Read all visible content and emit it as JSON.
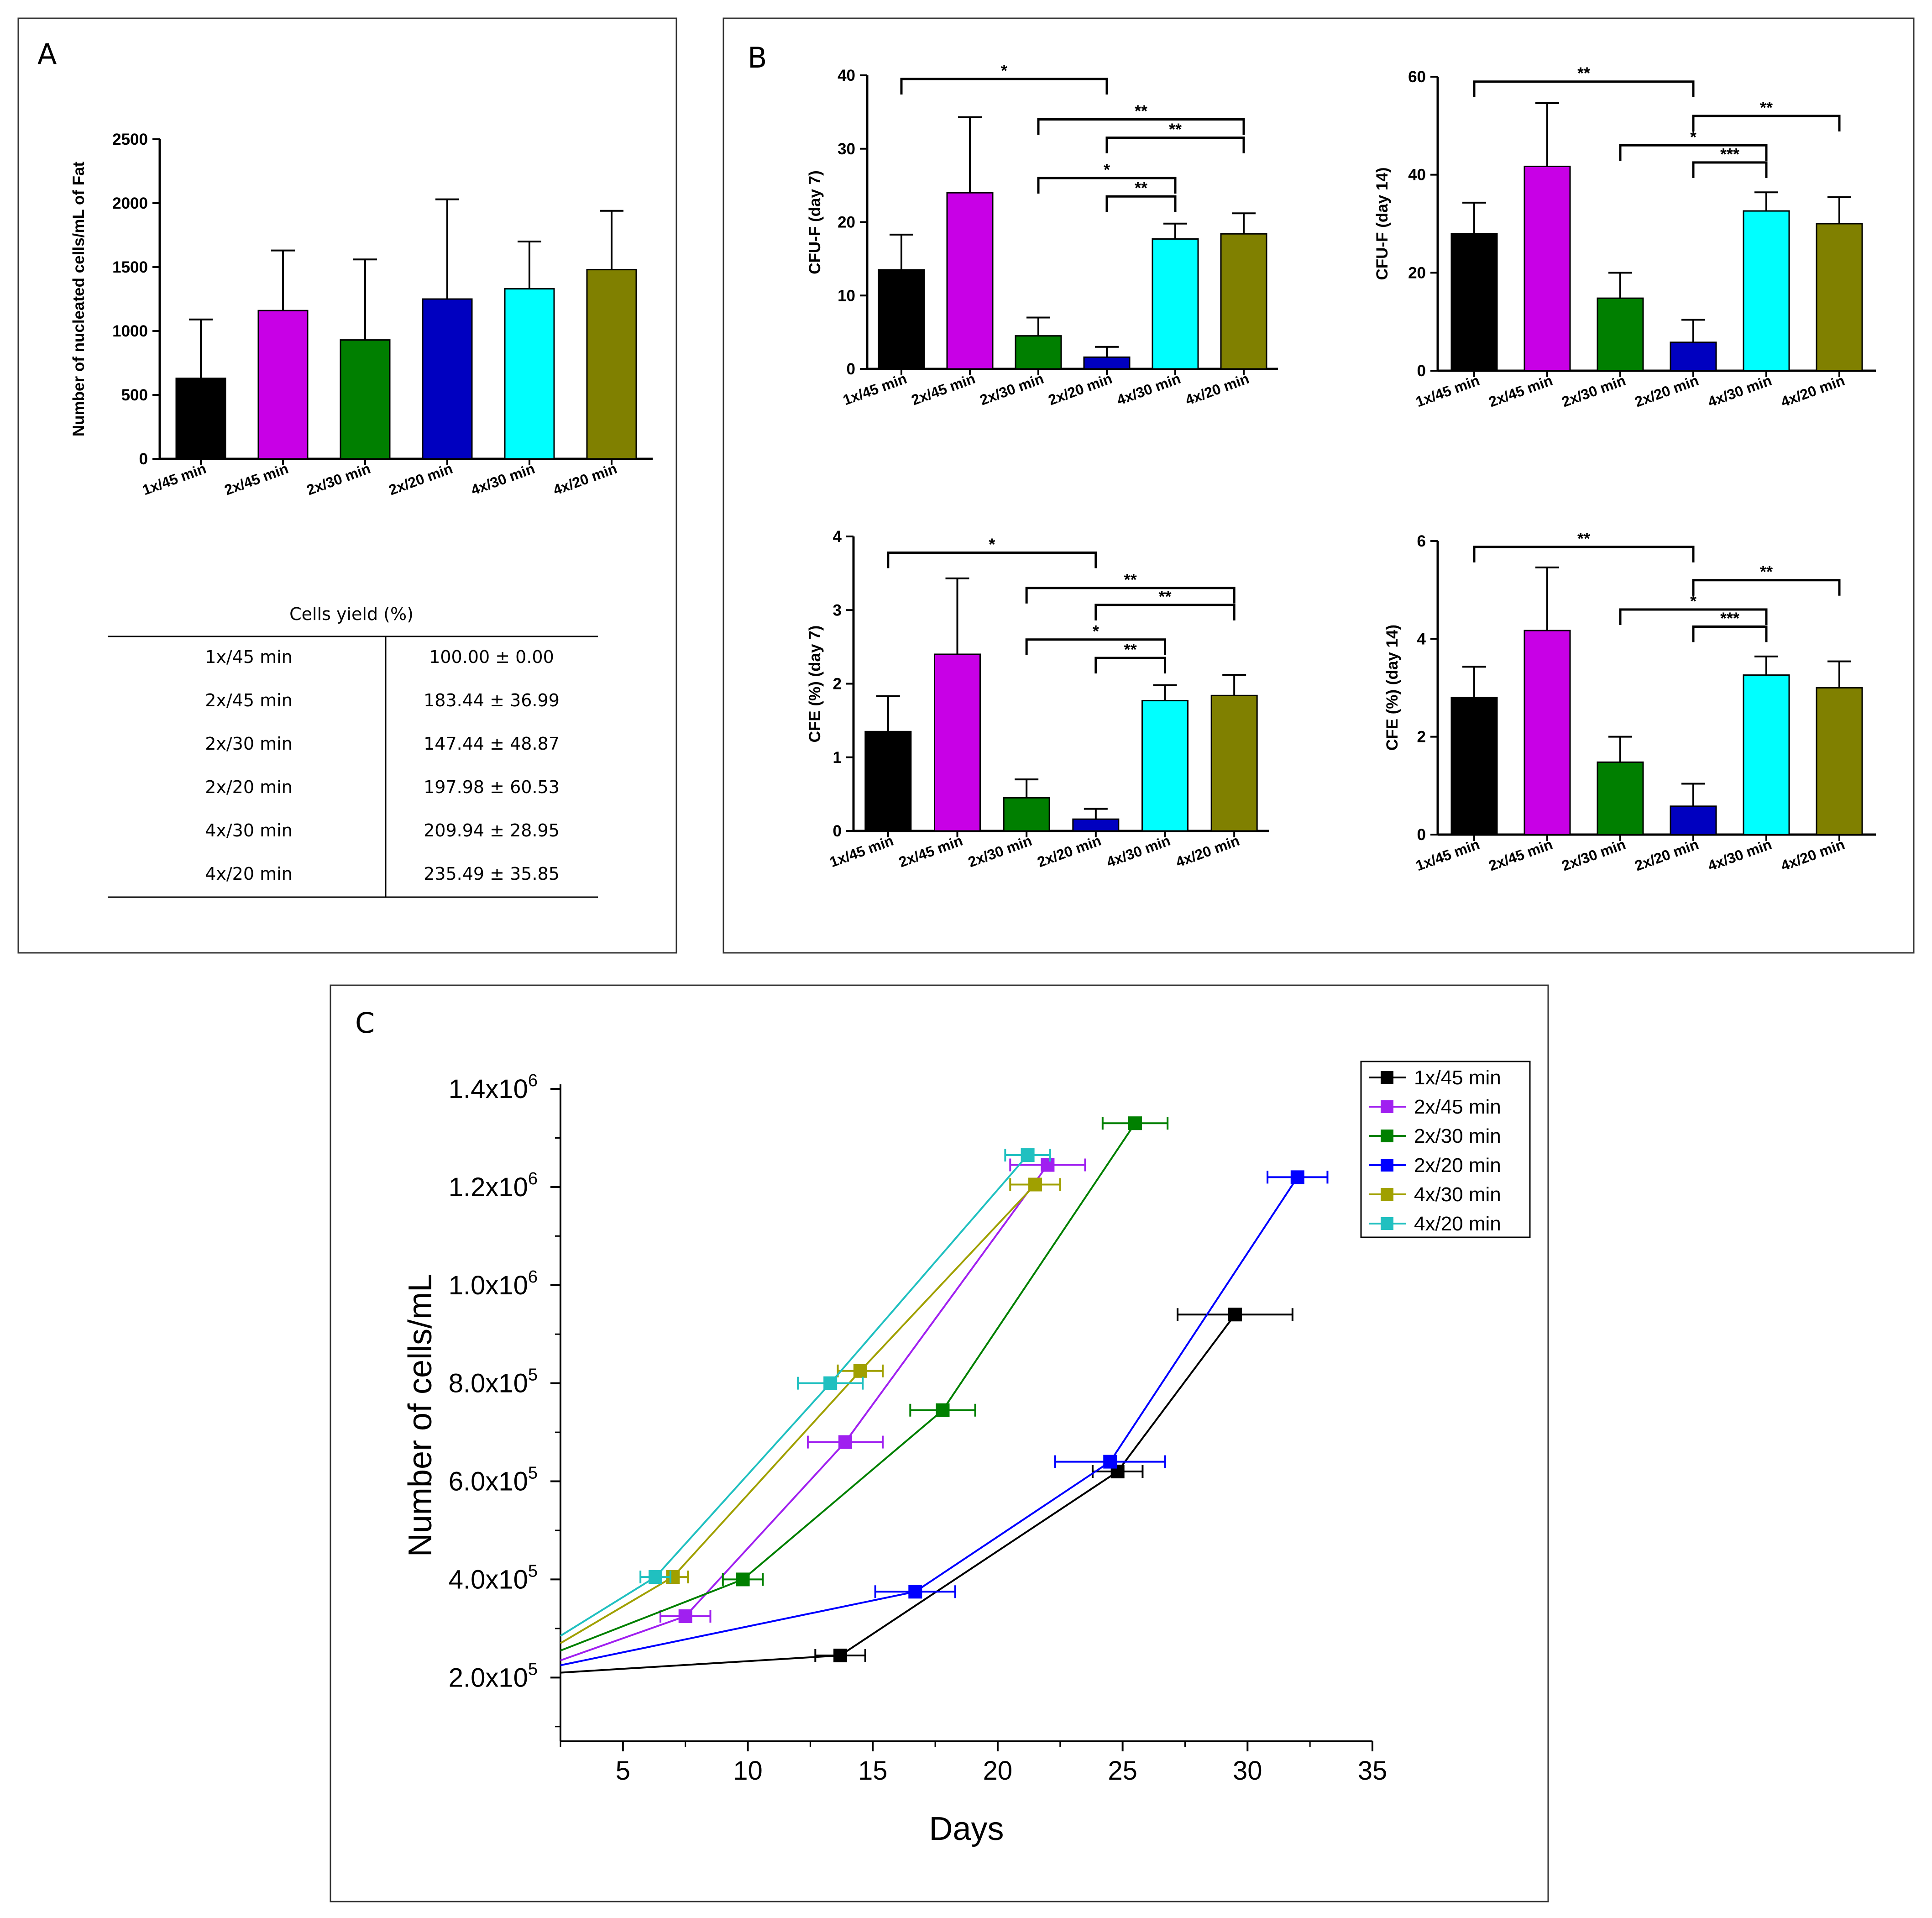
{
  "figure": {
    "panel_a": {
      "letter": "A"
    },
    "panel_b": {
      "letter": "B"
    },
    "panel_c": {
      "letter": "C"
    }
  },
  "colors": {
    "1x/45 min": "#000000",
    "2x/45 min": "#c800e6",
    "2x/30 min": "#007f00",
    "2x/20 min": "#0000c0",
    "4x/30 min": "#00ffff",
    "4x/20 min": "#808000"
  },
  "line_colors": {
    "1x/45 min": "#000000",
    "2x/45 min": "#a020f0",
    "2x/30 min": "#008000",
    "2x/20 min": "#0000ff",
    "4x/30 min": "#a0a000",
    "4x/20 min": "#20c0c0"
  },
  "cells_yield": {
    "title": "Cells yield (%)",
    "rows": [
      {
        "group": "1x/45 min",
        "value": "100.00 ± 0.00"
      },
      {
        "group": "2x/45 min",
        "value": "183.44 ± 36.99"
      },
      {
        "group": "2x/30 min",
        "value": "147.44 ± 48.87"
      },
      {
        "group": "2x/20 min",
        "value": "197.98 ± 60.53"
      },
      {
        "group": "4x/30 min",
        "value": "209.94 ± 28.95"
      },
      {
        "group": "4x/20 min",
        "value": "235.49 ± 35.85"
      }
    ]
  },
  "chart_data": [
    {
      "id": "A",
      "type": "bar",
      "ylabel": "Number of nucleated cells/mL of Fat",
      "categories": [
        "1x/45 min",
        "2x/45 min",
        "2x/30 min",
        "2x/20 min",
        "4x/30 min",
        "4x/20 min"
      ],
      "values": [
        630,
        1160,
        930,
        1250,
        1330,
        1480
      ],
      "errors": [
        460,
        470,
        630,
        780,
        370,
        460
      ],
      "ylim": [
        0,
        2500
      ],
      "yticks": [
        0,
        500,
        1000,
        1500,
        2000,
        2500
      ],
      "ytick_labels": [
        "0",
        "500",
        "1000",
        "1500",
        "2000",
        "2500"
      ],
      "significance": []
    },
    {
      "id": "B1",
      "type": "bar",
      "ylabel": "CFU-F (day 7)",
      "categories": [
        "1x/45 min",
        "2x/45 min",
        "2x/30 min",
        "2x/20 min",
        "4x/30 min",
        "4x/20 min"
      ],
      "values": [
        13.5,
        24.0,
        4.5,
        1.6,
        17.7,
        18.4
      ],
      "errors": [
        4.8,
        10.3,
        2.5,
        1.4,
        2.1,
        2.8
      ],
      "ylim": [
        0,
        40
      ],
      "yticks": [
        0,
        10,
        20,
        30,
        40
      ],
      "ytick_labels": [
        "0",
        "10",
        "20",
        "30",
        "40"
      ],
      "significance": [
        {
          "from": 0,
          "to": 3,
          "y": 39.5,
          "label": "*"
        },
        {
          "from": 2,
          "to": 5,
          "y": 34.0,
          "label": "**"
        },
        {
          "from": 3,
          "to": 5,
          "y": 31.5,
          "label": "**"
        },
        {
          "from": 2,
          "to": 4,
          "y": 26.0,
          "label": "*"
        },
        {
          "from": 3,
          "to": 4,
          "y": 23.5,
          "label": "**"
        }
      ]
    },
    {
      "id": "B2",
      "type": "bar",
      "ylabel": "CFU-F (day 14)",
      "categories": [
        "1x/45 min",
        "2x/45 min",
        "2x/30 min",
        "2x/20 min",
        "4x/30 min",
        "4x/20 min"
      ],
      "values": [
        28.0,
        41.7,
        14.8,
        5.8,
        32.6,
        30.0
      ],
      "errors": [
        6.3,
        12.9,
        5.2,
        4.6,
        3.8,
        5.4
      ],
      "ylim": [
        0,
        60
      ],
      "yticks": [
        0,
        20,
        40,
        60
      ],
      "ytick_labels": [
        "0",
        "20",
        "40",
        "60"
      ],
      "significance": [
        {
          "from": 0,
          "to": 3,
          "y": 59.0,
          "label": "**"
        },
        {
          "from": 3,
          "to": 5,
          "y": 52.0,
          "label": "**"
        },
        {
          "from": 2,
          "to": 4,
          "y": 46.0,
          "label": "*"
        },
        {
          "from": 3,
          "to": 4,
          "y": 42.5,
          "label": "***"
        }
      ]
    },
    {
      "id": "B3",
      "type": "bar",
      "ylabel": "CFE (%) (day 7)",
      "categories": [
        "1x/45 min",
        "2x/45 min",
        "2x/30 min",
        "2x/20 min",
        "4x/30 min",
        "4x/20 min"
      ],
      "values": [
        1.35,
        2.4,
        0.45,
        0.16,
        1.77,
        1.84
      ],
      "errors": [
        0.48,
        1.03,
        0.25,
        0.14,
        0.21,
        0.28
      ],
      "ylim": [
        0,
        4
      ],
      "yticks": [
        0,
        1,
        2,
        3,
        4
      ],
      "ytick_labels": [
        "0",
        "1",
        "2",
        "3",
        "4"
      ],
      "significance": [
        {
          "from": 0,
          "to": 3,
          "y": 3.78,
          "label": "*"
        },
        {
          "from": 2,
          "to": 5,
          "y": 3.3,
          "label": "**"
        },
        {
          "from": 3,
          "to": 5,
          "y": 3.07,
          "label": "**"
        },
        {
          "from": 2,
          "to": 4,
          "y": 2.6,
          "label": "*"
        },
        {
          "from": 3,
          "to": 4,
          "y": 2.35,
          "label": "**"
        }
      ]
    },
    {
      "id": "B4",
      "type": "bar",
      "ylabel": "CFE (%) (day 14)",
      "categories": [
        "1x/45 min",
        "2x/45 min",
        "2x/30 min",
        "2x/20 min",
        "4x/30 min",
        "4x/20 min"
      ],
      "values": [
        2.8,
        4.17,
        1.48,
        0.58,
        3.26,
        3.0
      ],
      "errors": [
        0.63,
        1.29,
        0.52,
        0.46,
        0.38,
        0.54
      ],
      "ylim": [
        0,
        6
      ],
      "yticks": [
        0,
        2,
        4,
        6
      ],
      "ytick_labels": [
        "0",
        "2",
        "4",
        "6"
      ],
      "significance": [
        {
          "from": 0,
          "to": 3,
          "y": 5.88,
          "label": "**"
        },
        {
          "from": 3,
          "to": 5,
          "y": 5.2,
          "label": "**"
        },
        {
          "from": 2,
          "to": 4,
          "y": 4.6,
          "label": "*"
        },
        {
          "from": 3,
          "to": 4,
          "y": 4.25,
          "label": "***"
        }
      ]
    },
    {
      "id": "C",
      "type": "line",
      "xlabel": "Days",
      "ylabel": "Number of cells/mL",
      "xlim": [
        2.5,
        35
      ],
      "ylim": [
        70000,
        1400000
      ],
      "xticks": [
        5,
        10,
        15,
        20,
        25,
        30,
        35
      ],
      "xtick_labels": [
        "5",
        "10",
        "15",
        "20",
        "25",
        "30",
        "35"
      ],
      "yticks": [
        200000,
        400000,
        600000,
        800000,
        1000000,
        1200000,
        1400000
      ],
      "ytick_bases": [
        "2.0x10",
        "4.0x10",
        "6.0x10",
        "8.0x10",
        "1.0x10",
        "1.2x10",
        "1.4x10"
      ],
      "ytick_exps": [
        "5",
        "5",
        "5",
        "5",
        "6",
        "6",
        "6"
      ],
      "legend_position": "top-right",
      "series": [
        {
          "name": "1x/45 min",
          "x": [
            2.5,
            13.7,
            24.8,
            29.5
          ],
          "y": [
            210000,
            245000,
            620000,
            940000
          ],
          "xerr": [
            0,
            1.0,
            1.0,
            2.3
          ],
          "markers": [
            false,
            true,
            true,
            true
          ]
        },
        {
          "name": "2x/45 min",
          "x": [
            2.5,
            7.5,
            13.9,
            22.0
          ],
          "y": [
            235000,
            325000,
            680000,
            1245000
          ],
          "xerr": [
            0,
            1.0,
            1.5,
            1.5
          ],
          "markers": [
            false,
            true,
            true,
            true
          ]
        },
        {
          "name": "2x/30 min",
          "x": [
            2.5,
            9.8,
            17.8,
            25.5
          ],
          "y": [
            255000,
            400000,
            745000,
            1330000
          ],
          "xerr": [
            0,
            0.8,
            1.3,
            1.3
          ],
          "markers": [
            false,
            true,
            true,
            true
          ]
        },
        {
          "name": "2x/20 min",
          "x": [
            2.5,
            16.7,
            24.5,
            32.0
          ],
          "y": [
            225000,
            375000,
            640000,
            1220000
          ],
          "xerr": [
            0,
            1.6,
            2.2,
            1.2
          ],
          "markers": [
            false,
            true,
            true,
            true
          ]
        },
        {
          "name": "4x/30 min",
          "x": [
            2.5,
            7.0,
            14.5,
            21.5
          ],
          "y": [
            270000,
            405000,
            825000,
            1205000
          ],
          "xerr": [
            0,
            0.6,
            0.9,
            1.0
          ],
          "markers": [
            false,
            true,
            true,
            true
          ]
        },
        {
          "name": "4x/20 min",
          "x": [
            2.5,
            6.3,
            13.3,
            21.2
          ],
          "y": [
            285000,
            405000,
            800000,
            1265000
          ],
          "xerr": [
            0,
            0.6,
            1.3,
            0.9
          ],
          "markers": [
            false,
            true,
            true,
            true
          ]
        }
      ]
    }
  ]
}
